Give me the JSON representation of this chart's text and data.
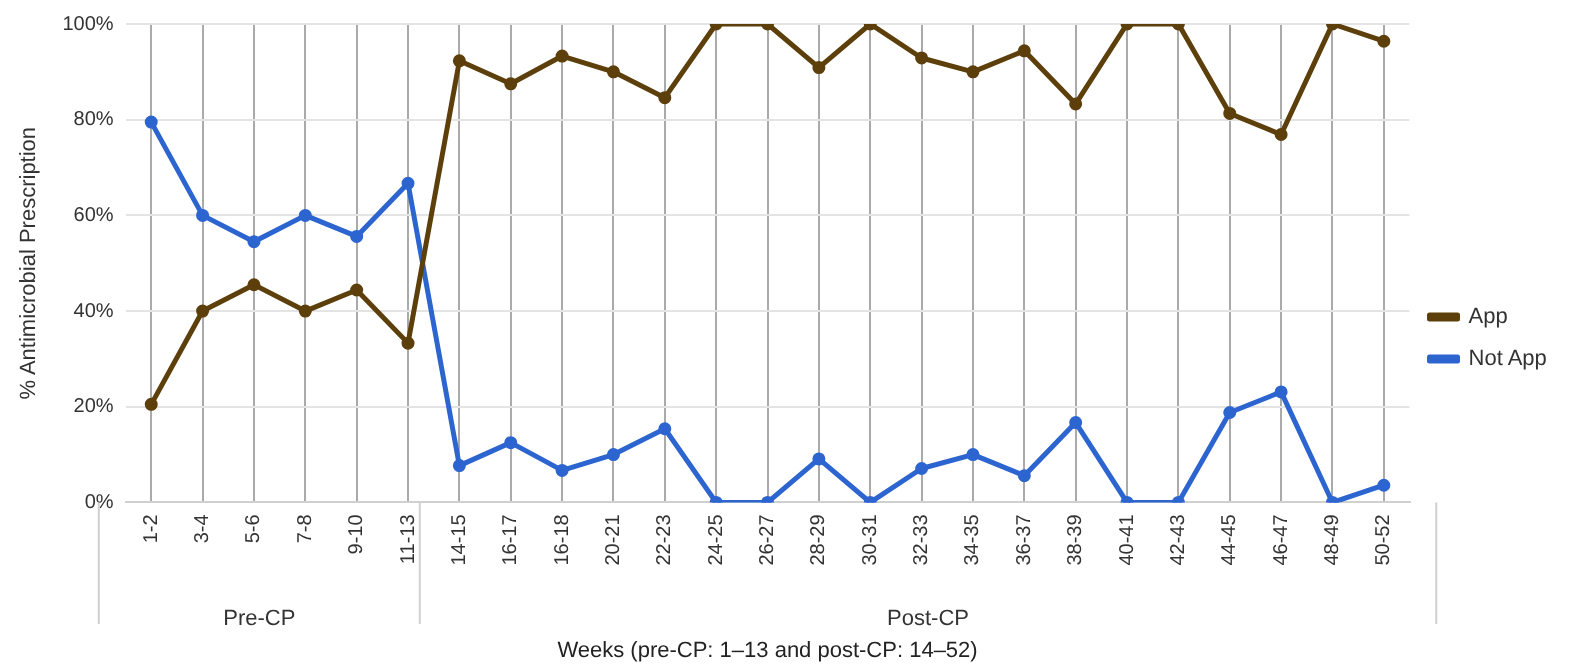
{
  "chart_data": {
    "type": "line",
    "ylabel": "% Antimicrobial Prescription",
    "xlabel": "Weeks (pre-CP: 1–13 and post-CP: 14–52)",
    "categories": [
      "1-2",
      "3-4",
      "5-6",
      "7-8",
      "9-10",
      "11-13",
      "14-15",
      "16-17",
      "16-18",
      "20-21",
      "22-23",
      "24-25",
      "26-27",
      "28-29",
      "30-31",
      "32-33",
      "34-35",
      "36-37",
      "38-39",
      "40-41",
      "42-43",
      "44-45",
      "46-47",
      "48-49",
      "50-52"
    ],
    "series": [
      {
        "name": "App",
        "color": "#5c3f0a",
        "values": [
          20.5,
          40,
          45.5,
          40,
          44.4,
          33.3,
          92.3,
          87.5,
          93.3,
          90,
          84.6,
          100,
          100,
          90.9,
          100,
          92.9,
          90,
          94.4,
          83.3,
          100,
          100,
          81.3,
          76.9,
          100,
          96.4
        ]
      },
      {
        "name": "Not App",
        "color": "#2c64d0",
        "values": [
          79.5,
          60,
          54.5,
          60,
          55.6,
          66.7,
          7.7,
          12.5,
          6.7,
          10,
          15.4,
          0,
          0,
          9.1,
          0,
          7.1,
          10,
          5.6,
          16.7,
          0,
          0,
          18.8,
          23.1,
          0,
          3.6
        ]
      }
    ],
    "ylim": [
      0,
      100
    ],
    "yticks": [
      {
        "value": 0,
        "label": "0%"
      },
      {
        "value": 20,
        "label": "20%"
      },
      {
        "value": 40,
        "label": "40%"
      },
      {
        "value": 60,
        "label": "60%"
      },
      {
        "value": 80,
        "label": "80%"
      },
      {
        "value": 100,
        "label": "100%"
      }
    ],
    "annotations": [
      "Pre-CP",
      "Post-CP"
    ],
    "grid": true,
    "legend": "right",
    "marker": "circle",
    "line_style": "solid"
  }
}
